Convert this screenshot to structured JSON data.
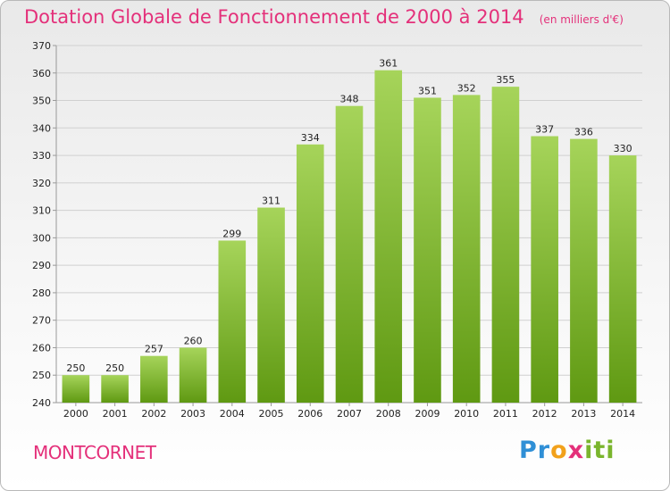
{
  "chart_data": {
    "type": "bar",
    "title": "Dotation Globale de Fonctionnement de 2000 à 2014",
    "subtitle": "(en milliers d'€)",
    "categories": [
      "2000",
      "2001",
      "2002",
      "2003",
      "2004",
      "2005",
      "2006",
      "2007",
      "2008",
      "2009",
      "2010",
      "2011",
      "2012",
      "2013",
      "2014"
    ],
    "values": [
      250,
      250,
      257,
      260,
      299,
      311,
      334,
      348,
      361,
      351,
      352,
      355,
      337,
      336,
      330
    ],
    "ylim": [
      240,
      370
    ],
    "yticks": [
      240,
      250,
      260,
      270,
      280,
      290,
      300,
      310,
      320,
      330,
      340,
      350,
      360,
      370
    ],
    "xlabel": "",
    "ylabel": "",
    "grid": true,
    "colors": {
      "bar_top": "#a6d45a",
      "bar_bottom": "#5f9912",
      "grid": "#d0d0d0",
      "axis": "#999999",
      "title": "#e4307a"
    }
  },
  "footer": {
    "commune": "MONTCORNET",
    "brand_letters": [
      {
        "char": "P",
        "color": "#2f8fd6"
      },
      {
        "char": "r",
        "color": "#2f8fd6"
      },
      {
        "char": "o",
        "color": "#f2a11b"
      },
      {
        "char": "x",
        "color": "#e4307a"
      },
      {
        "char": "i",
        "color": "#7ab52d"
      },
      {
        "char": "t",
        "color": "#7ab52d"
      },
      {
        "char": "i",
        "color": "#7ab52d"
      }
    ]
  }
}
